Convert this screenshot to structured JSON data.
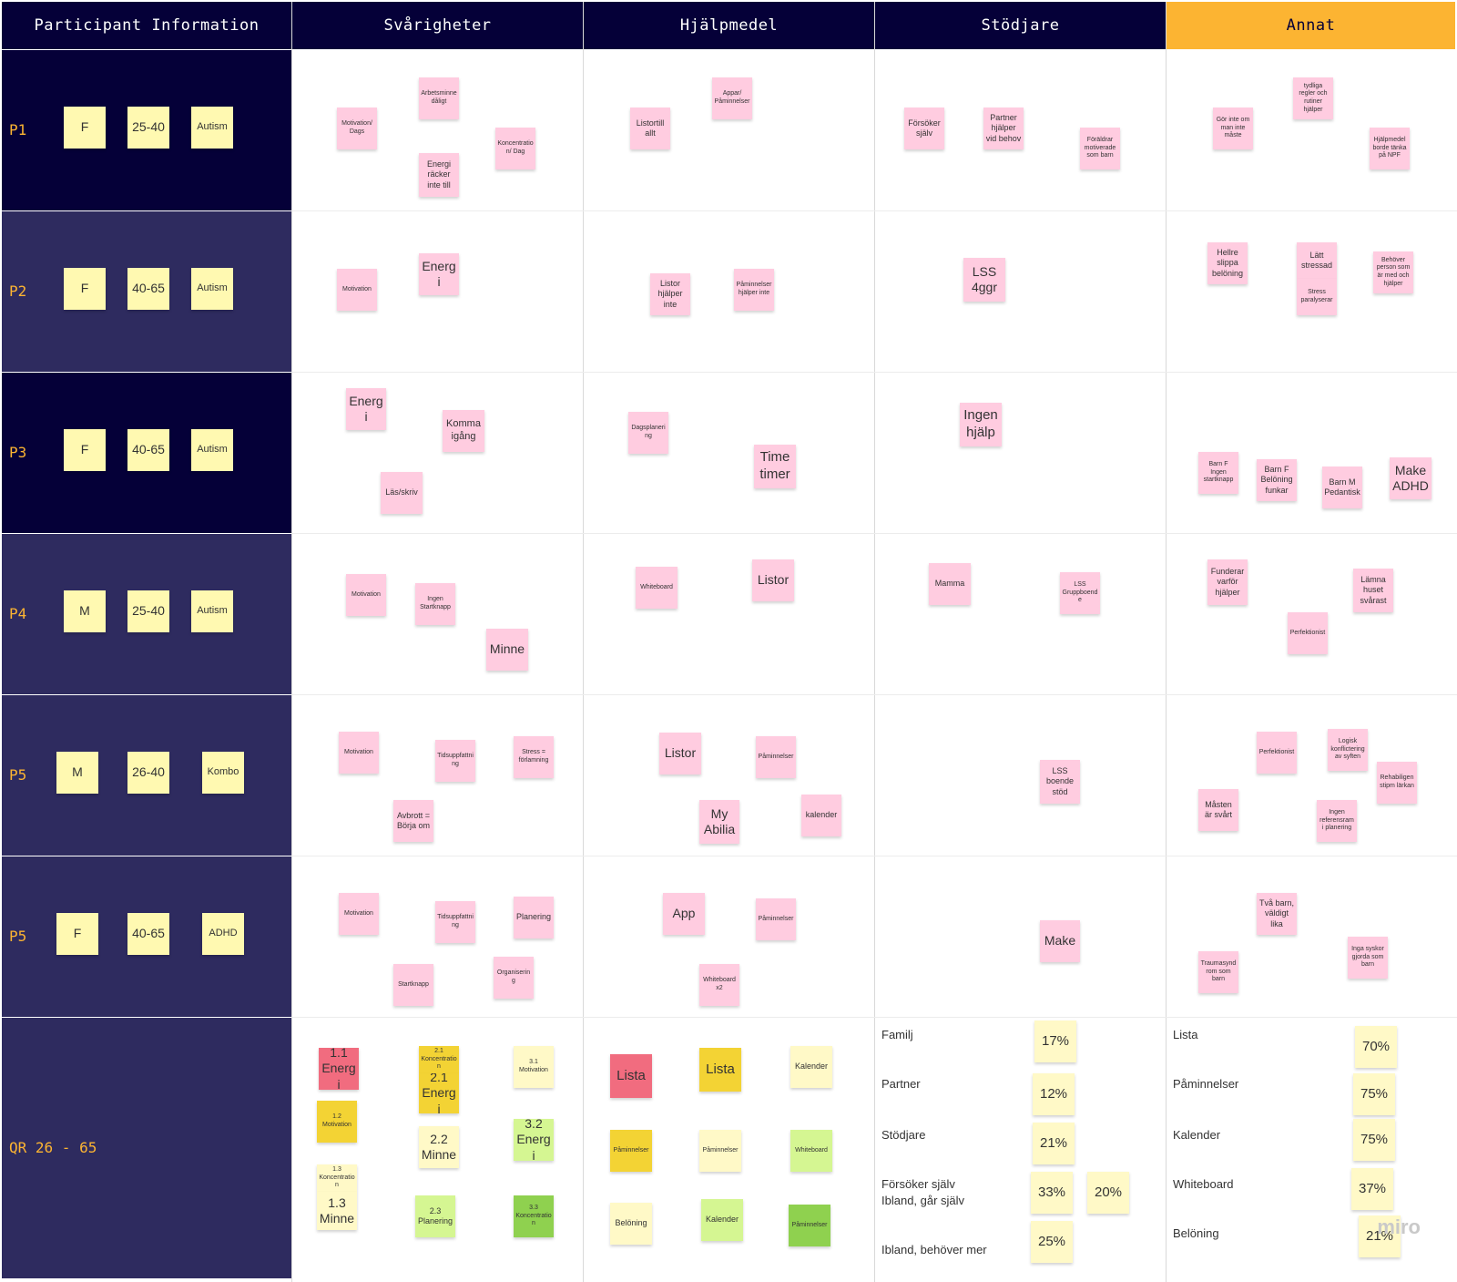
{
  "columns": [
    "Participant Information",
    "Svårigheter",
    "Hjälpmedel",
    "Stödjare",
    "Annat"
  ],
  "rows": [
    {
      "label": "P1",
      "gender": "F",
      "age": "25-40",
      "diagnosis": "Autism"
    },
    {
      "label": "P2",
      "gender": "F",
      "age": "40-65",
      "diagnosis": "Autism"
    },
    {
      "label": "P3",
      "gender": "F",
      "age": "40-65",
      "diagnosis": "Autism"
    },
    {
      "label": "P4",
      "gender": "M",
      "age": "25-40",
      "diagnosis": "Autism"
    },
    {
      "label": "P5",
      "gender": "M",
      "age": "26-40",
      "diagnosis": "Kombo"
    },
    {
      "label": "P5",
      "gender": "F",
      "age": "40-65",
      "diagnosis": "ADHD"
    }
  ],
  "qr_label": "QR 26 - 65",
  "notes": {
    "p1_svar": [
      "Arbetsminne dåligt",
      "Motivation/ Dags",
      "Energi räcker inte till",
      "Koncentration/ Dag"
    ],
    "p1_hjalp": [
      "Appar/ Påminnelser",
      "Listortill allt"
    ],
    "p1_stod": [
      "Försöker själv",
      "Partner hjälper vid behov",
      "Föräldrar motiverade som barn"
    ],
    "p1_annat": [
      "tydliga regler och rutiner hjälper",
      "Gör inte om man inte måste",
      "Hjälpmedel borde tänka på NPF"
    ],
    "p2_svar": [
      "Motivation",
      "Energi"
    ],
    "p2_hjalp": [
      "Listor hjälper inte",
      "Påminnelser hjälper inte"
    ],
    "p2_stod": [
      "LSS 4ggr"
    ],
    "p2_annat": [
      "Hellre slippa belöning",
      "Lätt stressad",
      "Stress paralyserar",
      "Behöver person som är med och hjälper"
    ],
    "p3_svar": [
      "Energi",
      "Komma igång",
      "Läs/skriv"
    ],
    "p3_hjalp": [
      "Dagsplanering",
      "Time timer"
    ],
    "p3_stod": [
      "Ingen hjälp"
    ],
    "p3_annat": [
      "Barn F Ingen startknapp",
      "Barn F Belöning funkar",
      "Barn M Pedantisk",
      "Make ADHD"
    ],
    "p4_svar": [
      "Motivation",
      "Ingen Startknapp",
      "Minne"
    ],
    "p4_hjalp": [
      "Whiteboard",
      "Listor"
    ],
    "p4_stod": [
      "Mamma",
      "LSS Gruppboende"
    ],
    "p4_annat": [
      "Funderar varför hjälper",
      "Lämna huset svårast",
      "Perfektionist"
    ],
    "p5a_svar": [
      "Motivation",
      "Tidsuppfattning",
      "Stress = förlamning",
      "Avbrott = Börja om"
    ],
    "p5a_hjalp": [
      "Listor",
      "Påminnelser",
      "My Abilia",
      "kalender"
    ],
    "p5a_stod": [
      "LSS boende stöd"
    ],
    "p5a_annat": [
      "Perfektionist",
      "Logisk konflictering av syften",
      "Rehabiligenstipm lärkan",
      "Måsten är svårt",
      "Ingen referensram i planering"
    ],
    "p5b_svar": [
      "Motivation",
      "Tidsuppfattning",
      "Planering",
      "Startknapp",
      "Organisering"
    ],
    "p5b_hjalp": [
      "App",
      "Påminnelser",
      "Whiteboard x2"
    ],
    "p5b_stod": [
      "Make"
    ],
    "p5b_annat": [
      "Två barn, väldigt lika",
      "Traumasyndrom som barn",
      "Inga syskor gjorda som barn"
    ],
    "qr_svar": [
      "1.1 Energi",
      "1.2 Motivation",
      "1.3 Koncentration",
      "1.3 Minne",
      "2.1 Koncentration",
      "2.1 Energi",
      "2.2 Minne",
      "2.3 Planering",
      "3.1 Motivation",
      "3.2 Energi",
      "3.3 Koncentration"
    ],
    "qr_hjalp": [
      "Lista",
      "Lista",
      "Kalender",
      "Påminnelser",
      "Påminnelser",
      "Whiteboard",
      "Belöning",
      "Kalender",
      "Påminnelser"
    ]
  },
  "stats_stod": [
    {
      "label": "Familj",
      "pct": "17%"
    },
    {
      "label": "Partner",
      "pct": "12%"
    },
    {
      "label": "Stödjare",
      "pct": "21%"
    },
    {
      "label": "Försöker själv",
      "label2": "Ibland, går själv",
      "pct": "33%",
      "pct2": "20%"
    },
    {
      "label": "Ibland, behöver mer",
      "pct": "25%"
    }
  ],
  "stats_annat": [
    {
      "label": "Lista",
      "pct": "70%"
    },
    {
      "label": "Påminnelser",
      "pct": "75%"
    },
    {
      "label": "Kalender",
      "pct": "75%"
    },
    {
      "label": "Whiteboard",
      "pct": "37%"
    },
    {
      "label": "Belöning",
      "pct": "21%"
    }
  ],
  "watermark": "miro",
  "colors": {
    "header": "#050038",
    "accent": "#fcb432",
    "row_dark": "#050038",
    "row_mid": "#2e2b5f",
    "sticky_pink": "#ffcce0",
    "sticky_yellow": "#fff9b1"
  }
}
